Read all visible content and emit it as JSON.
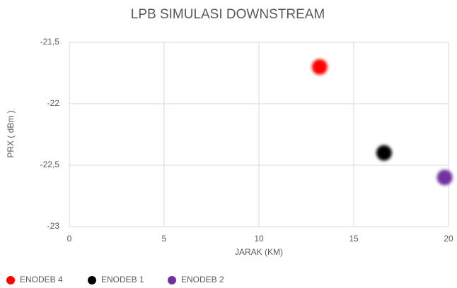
{
  "chart_data": {
    "type": "scatter",
    "title": "LPB SIMULASI DOWNSTREAM",
    "x_label": "JARAK (KM)",
    "y_label": "PRX ( dBm )",
    "xlim": [
      0,
      20
    ],
    "xticks": [
      0,
      5,
      10,
      15,
      20
    ],
    "ylim": [
      -23,
      -21.5
    ],
    "yticks": [
      {
        "value": -21.5,
        "label": "-21,5"
      },
      -22,
      {
        "value": -22.5,
        "label": "-22,5"
      },
      -23
    ],
    "grid": true,
    "legend": "bottom",
    "series": [
      {
        "name": "ENODEB 4",
        "color": "#ff0000",
        "x": [
          13.2
        ],
        "values": [
          -21.7
        ]
      },
      {
        "name": "ENODEB 1",
        "color": "#000000",
        "x": [
          16.6
        ],
        "values": [
          -22.4
        ]
      },
      {
        "name": "ENODEB 2",
        "color": "#7030a0",
        "x": [
          19.8
        ],
        "values": [
          -22.6
        ]
      }
    ]
  }
}
